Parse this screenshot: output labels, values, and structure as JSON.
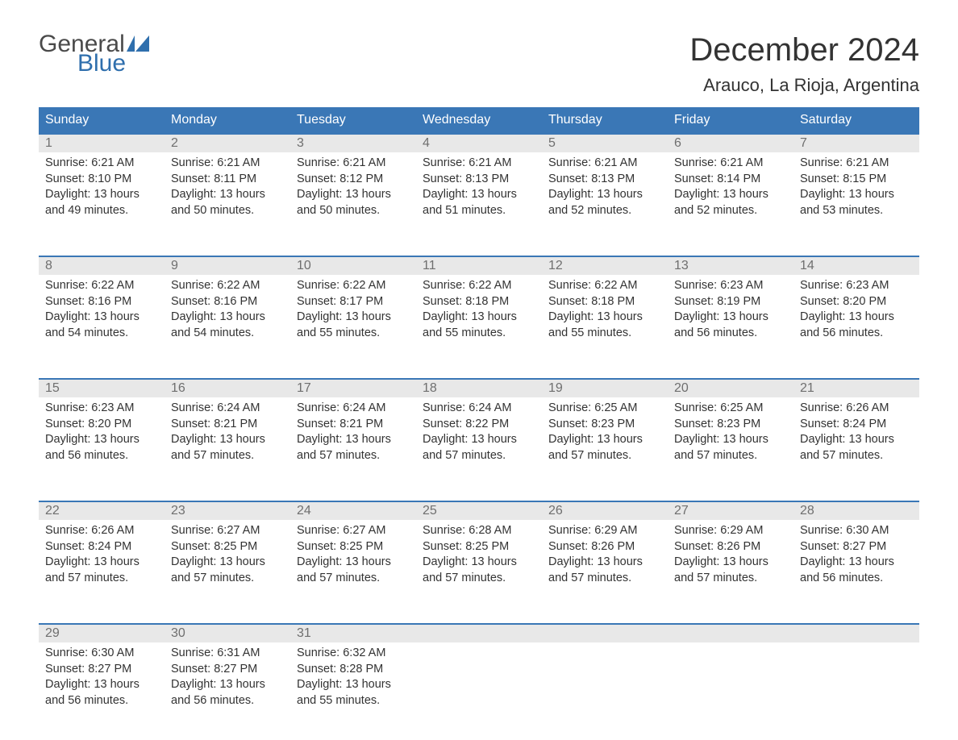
{
  "logo": {
    "text_general": "General",
    "text_blue": "Blue",
    "icon_color": "#2f6fad"
  },
  "title": "December 2024",
  "location": "Arauco, La Rioja, Argentina",
  "colors": {
    "header_bg": "#3a77b6",
    "header_text": "#ffffff",
    "daynum_strip_bg": "#e8e8e8",
    "daynum_text": "#6f6f6f",
    "body_text": "#333333",
    "row_border": "#3a77b6",
    "page_bg": "#ffffff"
  },
  "day_names": [
    "Sunday",
    "Monday",
    "Tuesday",
    "Wednesday",
    "Thursday",
    "Friday",
    "Saturday"
  ],
  "weeks": [
    [
      {
        "n": "1",
        "sunrise": "Sunrise: 6:21 AM",
        "sunset": "Sunset: 8:10 PM",
        "d1": "Daylight: 13 hours",
        "d2": "and 49 minutes."
      },
      {
        "n": "2",
        "sunrise": "Sunrise: 6:21 AM",
        "sunset": "Sunset: 8:11 PM",
        "d1": "Daylight: 13 hours",
        "d2": "and 50 minutes."
      },
      {
        "n": "3",
        "sunrise": "Sunrise: 6:21 AM",
        "sunset": "Sunset: 8:12 PM",
        "d1": "Daylight: 13 hours",
        "d2": "and 50 minutes."
      },
      {
        "n": "4",
        "sunrise": "Sunrise: 6:21 AM",
        "sunset": "Sunset: 8:13 PM",
        "d1": "Daylight: 13 hours",
        "d2": "and 51 minutes."
      },
      {
        "n": "5",
        "sunrise": "Sunrise: 6:21 AM",
        "sunset": "Sunset: 8:13 PM",
        "d1": "Daylight: 13 hours",
        "d2": "and 52 minutes."
      },
      {
        "n": "6",
        "sunrise": "Sunrise: 6:21 AM",
        "sunset": "Sunset: 8:14 PM",
        "d1": "Daylight: 13 hours",
        "d2": "and 52 minutes."
      },
      {
        "n": "7",
        "sunrise": "Sunrise: 6:21 AM",
        "sunset": "Sunset: 8:15 PM",
        "d1": "Daylight: 13 hours",
        "d2": "and 53 minutes."
      }
    ],
    [
      {
        "n": "8",
        "sunrise": "Sunrise: 6:22 AM",
        "sunset": "Sunset: 8:16 PM",
        "d1": "Daylight: 13 hours",
        "d2": "and 54 minutes."
      },
      {
        "n": "9",
        "sunrise": "Sunrise: 6:22 AM",
        "sunset": "Sunset: 8:16 PM",
        "d1": "Daylight: 13 hours",
        "d2": "and 54 minutes."
      },
      {
        "n": "10",
        "sunrise": "Sunrise: 6:22 AM",
        "sunset": "Sunset: 8:17 PM",
        "d1": "Daylight: 13 hours",
        "d2": "and 55 minutes."
      },
      {
        "n": "11",
        "sunrise": "Sunrise: 6:22 AM",
        "sunset": "Sunset: 8:18 PM",
        "d1": "Daylight: 13 hours",
        "d2": "and 55 minutes."
      },
      {
        "n": "12",
        "sunrise": "Sunrise: 6:22 AM",
        "sunset": "Sunset: 8:18 PM",
        "d1": "Daylight: 13 hours",
        "d2": "and 55 minutes."
      },
      {
        "n": "13",
        "sunrise": "Sunrise: 6:23 AM",
        "sunset": "Sunset: 8:19 PM",
        "d1": "Daylight: 13 hours",
        "d2": "and 56 minutes."
      },
      {
        "n": "14",
        "sunrise": "Sunrise: 6:23 AM",
        "sunset": "Sunset: 8:20 PM",
        "d1": "Daylight: 13 hours",
        "d2": "and 56 minutes."
      }
    ],
    [
      {
        "n": "15",
        "sunrise": "Sunrise: 6:23 AM",
        "sunset": "Sunset: 8:20 PM",
        "d1": "Daylight: 13 hours",
        "d2": "and 56 minutes."
      },
      {
        "n": "16",
        "sunrise": "Sunrise: 6:24 AM",
        "sunset": "Sunset: 8:21 PM",
        "d1": "Daylight: 13 hours",
        "d2": "and 57 minutes."
      },
      {
        "n": "17",
        "sunrise": "Sunrise: 6:24 AM",
        "sunset": "Sunset: 8:21 PM",
        "d1": "Daylight: 13 hours",
        "d2": "and 57 minutes."
      },
      {
        "n": "18",
        "sunrise": "Sunrise: 6:24 AM",
        "sunset": "Sunset: 8:22 PM",
        "d1": "Daylight: 13 hours",
        "d2": "and 57 minutes."
      },
      {
        "n": "19",
        "sunrise": "Sunrise: 6:25 AM",
        "sunset": "Sunset: 8:23 PM",
        "d1": "Daylight: 13 hours",
        "d2": "and 57 minutes."
      },
      {
        "n": "20",
        "sunrise": "Sunrise: 6:25 AM",
        "sunset": "Sunset: 8:23 PM",
        "d1": "Daylight: 13 hours",
        "d2": "and 57 minutes."
      },
      {
        "n": "21",
        "sunrise": "Sunrise: 6:26 AM",
        "sunset": "Sunset: 8:24 PM",
        "d1": "Daylight: 13 hours",
        "d2": "and 57 minutes."
      }
    ],
    [
      {
        "n": "22",
        "sunrise": "Sunrise: 6:26 AM",
        "sunset": "Sunset: 8:24 PM",
        "d1": "Daylight: 13 hours",
        "d2": "and 57 minutes."
      },
      {
        "n": "23",
        "sunrise": "Sunrise: 6:27 AM",
        "sunset": "Sunset: 8:25 PM",
        "d1": "Daylight: 13 hours",
        "d2": "and 57 minutes."
      },
      {
        "n": "24",
        "sunrise": "Sunrise: 6:27 AM",
        "sunset": "Sunset: 8:25 PM",
        "d1": "Daylight: 13 hours",
        "d2": "and 57 minutes."
      },
      {
        "n": "25",
        "sunrise": "Sunrise: 6:28 AM",
        "sunset": "Sunset: 8:25 PM",
        "d1": "Daylight: 13 hours",
        "d2": "and 57 minutes."
      },
      {
        "n": "26",
        "sunrise": "Sunrise: 6:29 AM",
        "sunset": "Sunset: 8:26 PM",
        "d1": "Daylight: 13 hours",
        "d2": "and 57 minutes."
      },
      {
        "n": "27",
        "sunrise": "Sunrise: 6:29 AM",
        "sunset": "Sunset: 8:26 PM",
        "d1": "Daylight: 13 hours",
        "d2": "and 57 minutes."
      },
      {
        "n": "28",
        "sunrise": "Sunrise: 6:30 AM",
        "sunset": "Sunset: 8:27 PM",
        "d1": "Daylight: 13 hours",
        "d2": "and 56 minutes."
      }
    ],
    [
      {
        "n": "29",
        "sunrise": "Sunrise: 6:30 AM",
        "sunset": "Sunset: 8:27 PM",
        "d1": "Daylight: 13 hours",
        "d2": "and 56 minutes."
      },
      {
        "n": "30",
        "sunrise": "Sunrise: 6:31 AM",
        "sunset": "Sunset: 8:27 PM",
        "d1": "Daylight: 13 hours",
        "d2": "and 56 minutes."
      },
      {
        "n": "31",
        "sunrise": "Sunrise: 6:32 AM",
        "sunset": "Sunset: 8:28 PM",
        "d1": "Daylight: 13 hours",
        "d2": "and 55 minutes."
      },
      null,
      null,
      null,
      null
    ]
  ]
}
